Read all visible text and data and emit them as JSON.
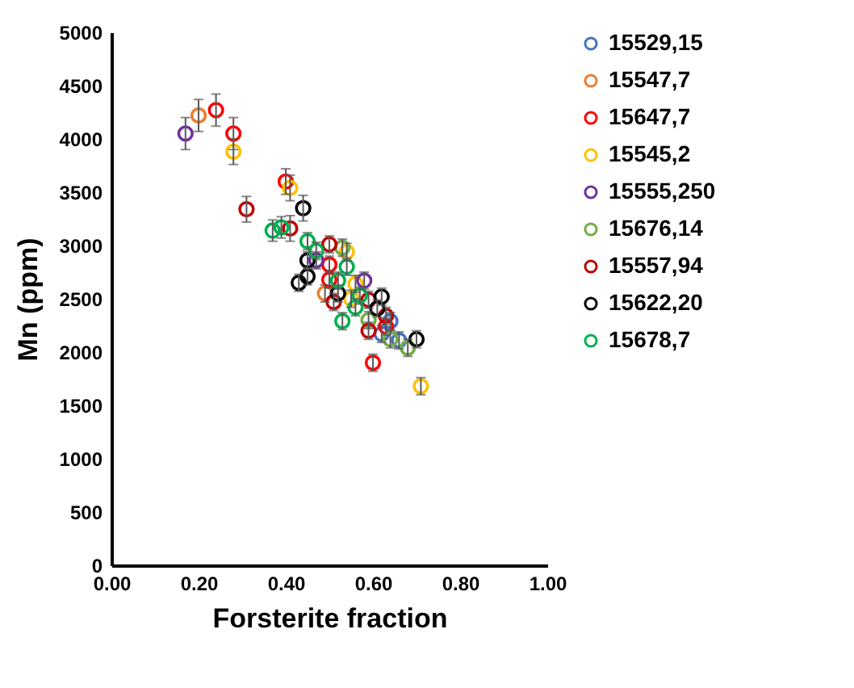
{
  "chart_data": {
    "type": "scatter",
    "xlabel": "Forsterite fraction",
    "ylabel": "Mn (ppm)",
    "xlim": [
      0,
      1
    ],
    "xticks": [
      {
        "value": 0,
        "label": "0.00"
      },
      {
        "value": 0.2,
        "label": "0.20"
      },
      {
        "value": 0.4,
        "label": "0.40"
      },
      {
        "value": 0.6,
        "label": "0.60"
      },
      {
        "value": 0.8,
        "label": "0.80"
      },
      {
        "value": 1,
        "label": "1.00"
      }
    ],
    "ylim": [
      0,
      5000
    ],
    "yticks": [
      0,
      500,
      1000,
      1500,
      2000,
      2500,
      3000,
      3500,
      4000,
      4500,
      5000
    ],
    "grid": false,
    "legend": "right",
    "marker": "circle",
    "series": [
      {
        "name": "15529,15",
        "color": "#4472c4",
        "x": [
          0.64,
          0.62,
          0.66
        ],
        "values": [
          2290,
          2170,
          2110
        ],
        "errors": [
          80,
          80,
          80
        ]
      },
      {
        "name": "15547,7",
        "color": "#ed7d31",
        "x": [
          0.2,
          0.49
        ],
        "values": [
          4220,
          2550
        ],
        "errors": [
          150,
          80
        ]
      },
      {
        "name": "15647,7",
        "color": "#ff0000",
        "x": [
          0.24,
          0.28,
          0.4,
          0.5,
          0.5,
          0.63,
          0.6
        ],
        "values": [
          4270,
          4050,
          3600,
          2820,
          2680,
          2240,
          1900
        ],
        "errors": [
          150,
          150,
          120,
          80,
          80,
          80,
          80
        ]
      },
      {
        "name": "15545,2",
        "color": "#ffc000",
        "x": [
          0.28,
          0.41,
          0.54,
          0.56,
          0.55,
          0.71
        ],
        "values": [
          3880,
          3540,
          2940,
          2640,
          2500,
          1680
        ],
        "errors": [
          120,
          120,
          80,
          80,
          80,
          80
        ]
      },
      {
        "name": "15555,250",
        "color": "#7030a0",
        "x": [
          0.17,
          0.47,
          0.58
        ],
        "values": [
          4050,
          2860,
          2670
        ],
        "errors": [
          150,
          80,
          80
        ]
      },
      {
        "name": "15676,14",
        "color": "#70ad47",
        "x": [
          0.53,
          0.59,
          0.64,
          0.68
        ],
        "values": [
          2980,
          2300,
          2120,
          2040
        ],
        "errors": [
          80,
          80,
          80,
          80
        ]
      },
      {
        "name": "15557,94",
        "color": "#c00000",
        "x": [
          0.31,
          0.41,
          0.5,
          0.51,
          0.59,
          0.63,
          0.59
        ],
        "values": [
          3340,
          3160,
          3010,
          2470,
          2490,
          2340,
          2200
        ],
        "errors": [
          120,
          120,
          80,
          80,
          80,
          80,
          80
        ]
      },
      {
        "name": "15622,20",
        "color": "#000000",
        "x": [
          0.44,
          0.45,
          0.45,
          0.43,
          0.52,
          0.62,
          0.61,
          0.7
        ],
        "values": [
          3350,
          2860,
          2710,
          2650,
          2550,
          2520,
          2410,
          2120
        ],
        "errors": [
          120,
          80,
          80,
          80,
          80,
          80,
          80,
          80
        ]
      },
      {
        "name": "15678,7",
        "color": "#00b050",
        "x": [
          0.37,
          0.39,
          0.45,
          0.47,
          0.54,
          0.52,
          0.57,
          0.56,
          0.53
        ],
        "values": [
          3140,
          3170,
          3040,
          2950,
          2800,
          2670,
          2530,
          2420,
          2290
        ],
        "errors": [
          100,
          100,
          80,
          80,
          80,
          80,
          80,
          80,
          80
        ]
      }
    ]
  }
}
